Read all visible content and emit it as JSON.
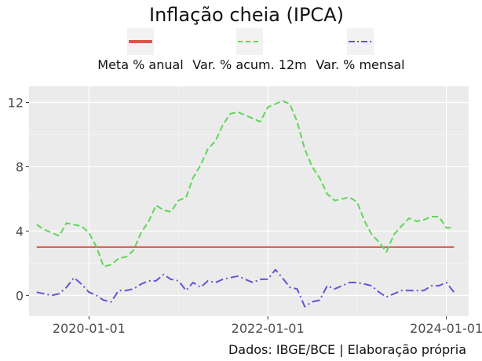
{
  "chart_data": {
    "type": "line",
    "title": "Inflação cheia (IPCA)",
    "caption": "Dados: IBGE/BCE | Elaboração própria",
    "xlabel": "",
    "ylabel": "",
    "x_ticks": [
      "2020-01-01",
      "2022-01-01",
      "2024-01-01"
    ],
    "y_ticks": [
      0,
      4,
      8,
      12
    ],
    "xlim": [
      "2019-05-01",
      "2024-04-01"
    ],
    "ylim": [
      -1.3,
      13.0
    ],
    "grid": true,
    "legend_position": "top",
    "series": [
      {
        "name": "Meta % anual",
        "color": "#d9574a",
        "style": "solid",
        "x": [
          "2019-06-01",
          "2024-02-01"
        ],
        "y": [
          3.0,
          3.0
        ]
      },
      {
        "name": "Var. % acum. 12m",
        "color": "#5fd65a",
        "style": "dashed",
        "x": [
          "2019-06-01",
          "2019-07-01",
          "2019-08-01",
          "2019-09-01",
          "2019-10-01",
          "2019-11-01",
          "2019-12-01",
          "2020-01-01",
          "2020-02-01",
          "2020-03-01",
          "2020-04-01",
          "2020-05-01",
          "2020-06-01",
          "2020-07-01",
          "2020-08-01",
          "2020-09-01",
          "2020-10-01",
          "2020-11-01",
          "2020-12-01",
          "2021-01-01",
          "2021-02-01",
          "2021-03-01",
          "2021-04-01",
          "2021-05-01",
          "2021-06-01",
          "2021-07-01",
          "2021-08-01",
          "2021-09-01",
          "2021-10-01",
          "2021-11-01",
          "2021-12-01",
          "2022-01-01",
          "2022-02-01",
          "2022-03-01",
          "2022-04-01",
          "2022-05-01",
          "2022-06-01",
          "2022-07-01",
          "2022-08-01",
          "2022-09-01",
          "2022-10-01",
          "2022-11-01",
          "2022-12-01",
          "2023-01-01",
          "2023-02-01",
          "2023-03-01",
          "2023-04-01",
          "2023-05-01",
          "2023-06-01",
          "2023-07-01",
          "2023-08-01",
          "2023-09-01",
          "2023-10-01",
          "2023-11-01",
          "2023-12-01",
          "2024-01-01",
          "2024-02-01"
        ],
        "y": [
          4.4,
          4.1,
          3.9,
          3.7,
          4.5,
          4.4,
          4.3,
          3.9,
          3.0,
          1.8,
          1.9,
          2.3,
          2.4,
          2.8,
          3.9,
          4.6,
          5.6,
          5.3,
          5.2,
          5.9,
          6.1,
          7.3,
          8.1,
          9.1,
          9.6,
          10.6,
          11.3,
          11.4,
          11.2,
          11.0,
          10.8,
          11.7,
          11.9,
          12.1,
          11.9,
          10.8,
          9.1,
          8.0,
          7.3,
          6.3,
          5.9,
          6.0,
          6.1,
          5.8,
          4.6,
          3.8,
          3.3,
          2.7,
          3.8,
          4.3,
          4.8,
          4.6,
          4.7,
          4.9,
          4.9,
          4.2,
          4.2
        ]
      },
      {
        "name": "Var. % mensal",
        "color": "#6254d6",
        "style": "dashdot",
        "x": [
          "2019-06-01",
          "2019-07-01",
          "2019-08-01",
          "2019-09-01",
          "2019-10-01",
          "2019-11-01",
          "2019-12-01",
          "2020-01-01",
          "2020-02-01",
          "2020-03-01",
          "2020-04-01",
          "2020-05-01",
          "2020-06-01",
          "2020-07-01",
          "2020-08-01",
          "2020-09-01",
          "2020-10-01",
          "2020-11-01",
          "2020-12-01",
          "2021-01-01",
          "2021-02-01",
          "2021-03-01",
          "2021-04-01",
          "2021-05-01",
          "2021-06-01",
          "2021-07-01",
          "2021-08-01",
          "2021-09-01",
          "2021-10-01",
          "2021-11-01",
          "2021-12-01",
          "2022-01-01",
          "2022-02-01",
          "2022-03-01",
          "2022-04-01",
          "2022-05-01",
          "2022-06-01",
          "2022-07-01",
          "2022-08-01",
          "2022-09-01",
          "2022-10-01",
          "2022-11-01",
          "2022-12-01",
          "2023-01-01",
          "2023-02-01",
          "2023-03-01",
          "2023-04-01",
          "2023-05-01",
          "2023-06-01",
          "2023-07-01",
          "2023-08-01",
          "2023-09-01",
          "2023-10-01",
          "2023-11-01",
          "2023-12-01",
          "2024-01-01",
          "2024-02-01"
        ],
        "y": [
          0.2,
          0.1,
          0.0,
          0.1,
          0.5,
          1.1,
          0.7,
          0.2,
          0.0,
          -0.3,
          -0.4,
          0.3,
          0.3,
          0.4,
          0.7,
          0.9,
          0.9,
          1.3,
          1.0,
          0.9,
          0.3,
          0.8,
          0.5,
          0.9,
          0.8,
          1.0,
          1.1,
          1.2,
          1.0,
          0.8,
          1.0,
          1.0,
          1.6,
          1.1,
          0.5,
          0.4,
          -0.7,
          -0.4,
          -0.3,
          0.6,
          0.4,
          0.6,
          0.8,
          0.8,
          0.7,
          0.6,
          0.2,
          -0.1,
          0.1,
          0.3,
          0.3,
          0.3,
          0.3,
          0.6,
          0.6,
          0.8,
          0.2
        ]
      }
    ]
  }
}
